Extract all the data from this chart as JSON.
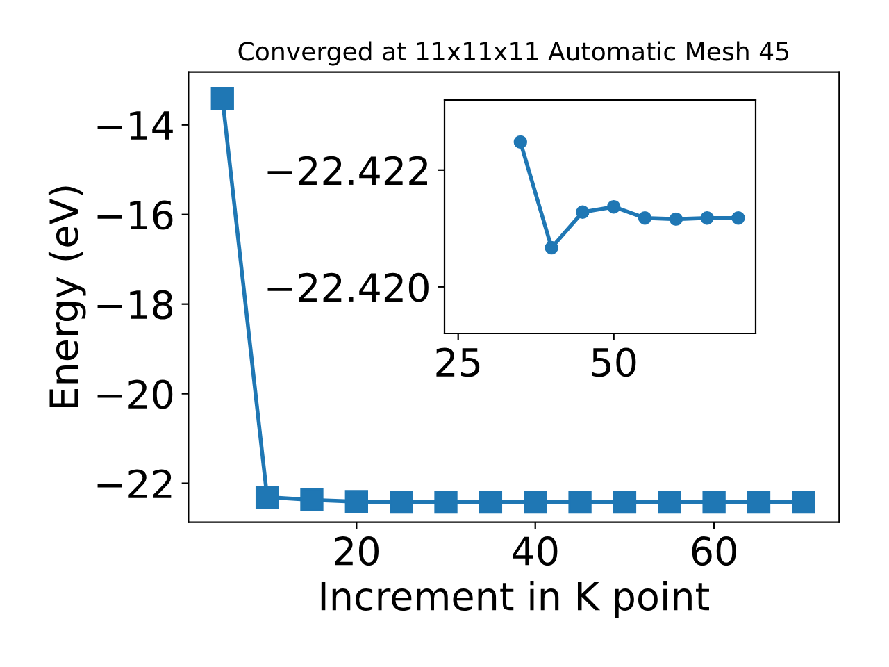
{
  "chart_data": [
    {
      "type": "line",
      "title": "Converged at 11x11x11 Automatic Mesh 45",
      "xlabel": "Increment in K point",
      "ylabel": "Energy (eV)",
      "marker": "square",
      "grid": false,
      "legend": false,
      "x": [
        5,
        10,
        15,
        20,
        25,
        30,
        35,
        40,
        45,
        50,
        55,
        60,
        65,
        70
      ],
      "series": [
        {
          "color": "#1f77b4",
          "values": [
            -13.41,
            -22.31,
            -22.37,
            -22.41,
            -22.42,
            -22.42,
            -22.42,
            -22.42,
            -22.42,
            -22.42,
            -22.42,
            -22.42,
            -22.42,
            -22.42
          ]
        }
      ],
      "xlim": [
        1.2,
        74.0
      ],
      "ylim": [
        -22.87,
        -12.82
      ],
      "xticks": [
        20,
        40,
        60
      ],
      "yticks": [
        -22,
        -20,
        -18,
        -16,
        -14
      ]
    },
    {
      "type": "line",
      "marker": "circle",
      "grid": false,
      "legend": false,
      "x": [
        35,
        40,
        45,
        50,
        55,
        60,
        65,
        70
      ],
      "series": [
        {
          "color": "#1f77b4",
          "values": [
            -22.42248,
            -22.42067,
            -22.42128,
            -22.42137,
            -22.42118,
            -22.42116,
            -22.42118,
            -22.42118
          ]
        }
      ],
      "xlim": [
        22.8,
        72.8
      ],
      "ylim": [
        -22.4192,
        -22.4232
      ],
      "xticks": [
        25,
        50
      ],
      "yticks": [
        {
          "value": -22.42,
          "label": "−22.420"
        },
        {
          "value": -22.422,
          "label": "−22.422"
        }
      ]
    }
  ]
}
